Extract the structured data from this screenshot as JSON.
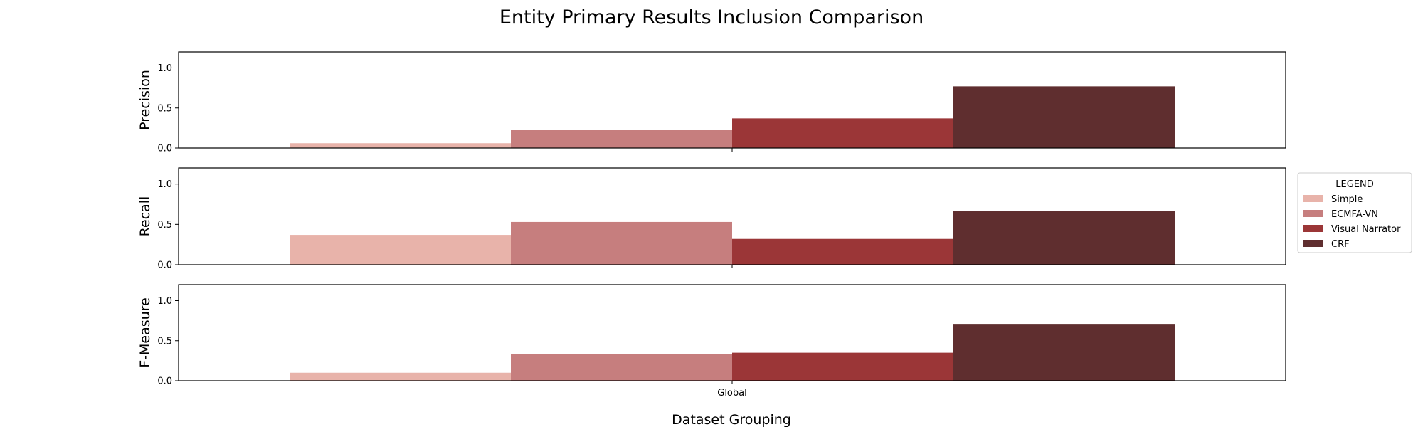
{
  "chart_data": {
    "type": "bar",
    "title": "Entity Primary Results Inclusion Comparison",
    "xlabel": "Dataset Grouping",
    "categories": [
      "Global"
    ],
    "ylim": [
      0,
      1.2
    ],
    "yticks": [
      "0.0",
      "0.5",
      "1.0"
    ],
    "legend": {
      "title": "LEGEND",
      "placement": "right",
      "entries": [
        "Simple",
        "ECMFA-VN",
        "Visual Narrator",
        "CRF"
      ]
    },
    "series_colors": {
      "Simple": "#e8b3aa",
      "ECMFA-VN": "#c67e7e",
      "Visual Narrator": "#9b3637",
      "CRF": "#5f2e2f"
    },
    "panels": [
      {
        "ylabel": "Precision",
        "series": [
          {
            "name": "Simple",
            "values": [
              0.06
            ]
          },
          {
            "name": "ECMFA-VN",
            "values": [
              0.23
            ]
          },
          {
            "name": "Visual Narrator",
            "values": [
              0.37
            ]
          },
          {
            "name": "CRF",
            "values": [
              0.77
            ]
          }
        ]
      },
      {
        "ylabel": "Recall",
        "series": [
          {
            "name": "Simple",
            "values": [
              0.37
            ]
          },
          {
            "name": "ECMFA-VN",
            "values": [
              0.53
            ]
          },
          {
            "name": "Visual Narrator",
            "values": [
              0.32
            ]
          },
          {
            "name": "CRF",
            "values": [
              0.67
            ]
          }
        ]
      },
      {
        "ylabel": "F-Measure",
        "series": [
          {
            "name": "Simple",
            "values": [
              0.1
            ]
          },
          {
            "name": "ECMFA-VN",
            "values": [
              0.33
            ]
          },
          {
            "name": "Visual Narrator",
            "values": [
              0.35
            ]
          },
          {
            "name": "CRF",
            "values": [
              0.71
            ]
          }
        ]
      }
    ]
  }
}
